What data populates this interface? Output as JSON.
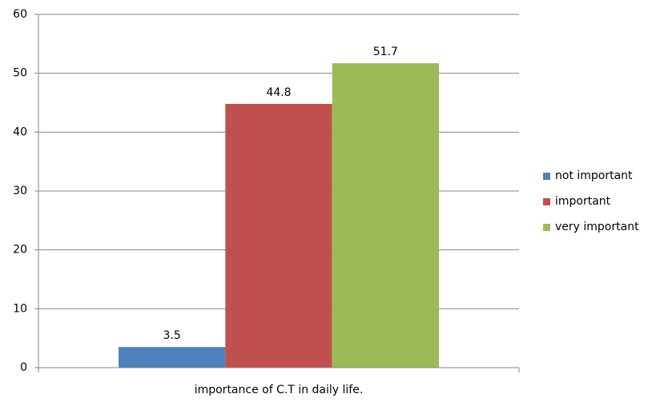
{
  "chart_data": {
    "type": "bar",
    "categories": [
      "importance of C.T in daily life."
    ],
    "series": [
      {
        "name": "not important",
        "color": "#4f81bd",
        "values": [
          3.5
        ]
      },
      {
        "name": "important",
        "color": "#c0504d",
        "values": [
          44.8
        ]
      },
      {
        "name": "very important",
        "color": "#9bbb59",
        "values": [
          51.7
        ]
      }
    ],
    "ylim": [
      0,
      60
    ],
    "yticks": [
      0,
      10,
      20,
      30,
      40,
      50,
      60
    ],
    "grid": true,
    "legend": "right"
  }
}
